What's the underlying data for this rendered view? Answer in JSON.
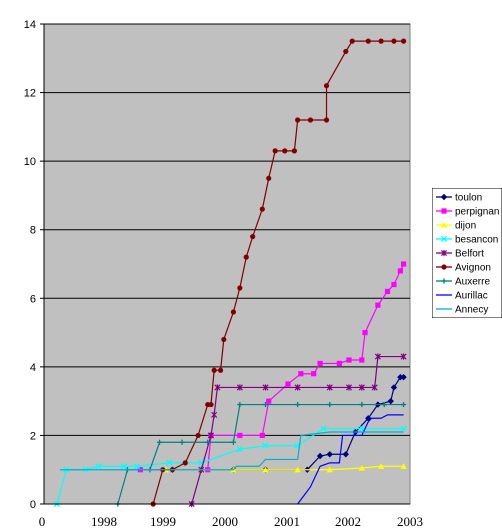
{
  "chart_data": {
    "type": "line",
    "ylim": [
      0,
      14
    ],
    "y_ticks": [
      "0",
      "2",
      "4",
      "6",
      "8",
      "10",
      "12",
      "14"
    ],
    "x_ticks": [
      "0",
      "1998",
      "1999",
      "2000",
      "2001",
      "2002",
      "2003"
    ],
    "xlim": [
      1997.55,
      2003.25
    ],
    "grid": true,
    "legend_position": "right",
    "plot_background": "#c0c0c0",
    "series": [
      {
        "name": "toulon",
        "color": "#000080",
        "marker": "diamond",
        "points": [
          [
            1999.55,
            1.0
          ],
          [
            2000.5,
            1.0
          ],
          [
            2001.0,
            1.0
          ],
          [
            2001.65,
            1.0
          ],
          [
            2001.85,
            1.4
          ],
          [
            2002.0,
            1.45
          ],
          [
            2002.25,
            1.45
          ],
          [
            2002.4,
            2.1
          ],
          [
            2002.6,
            2.5
          ],
          [
            2002.75,
            2.9
          ],
          [
            2002.95,
            3.0
          ],
          [
            2003.0,
            3.4
          ],
          [
            2003.1,
            3.7
          ],
          [
            2003.15,
            3.7
          ]
        ]
      },
      {
        "name": "perpignan",
        "color": "#ff00ff",
        "marker": "square",
        "points": [
          [
            1999.05,
            1.0
          ],
          [
            2000.1,
            1.0
          ],
          [
            2000.15,
            2.0
          ],
          [
            2000.6,
            2.0
          ],
          [
            2000.95,
            2.0
          ],
          [
            2001.05,
            3.0
          ],
          [
            2001.35,
            3.5
          ],
          [
            2001.55,
            3.8
          ],
          [
            2001.75,
            3.8
          ],
          [
            2001.85,
            4.1
          ],
          [
            2002.15,
            4.1
          ],
          [
            2002.3,
            4.2
          ],
          [
            2002.5,
            4.2
          ],
          [
            2002.55,
            5.0
          ],
          [
            2002.75,
            5.8
          ],
          [
            2002.9,
            6.2
          ],
          [
            2003.0,
            6.4
          ],
          [
            2003.1,
            6.8
          ],
          [
            2003.15,
            7.0
          ]
        ]
      },
      {
        "name": "dijon",
        "color": "#ffff00",
        "marker": "triangle",
        "points": [
          [
            1999.45,
            1.0
          ],
          [
            2000.0,
            1.0
          ],
          [
            2000.5,
            1.0
          ],
          [
            2001.0,
            1.0
          ],
          [
            2001.5,
            1.0
          ],
          [
            2002.0,
            1.0
          ],
          [
            2002.5,
            1.05
          ],
          [
            2002.8,
            1.1
          ],
          [
            2003.15,
            1.1
          ]
        ]
      },
      {
        "name": "besancon",
        "color": "#00ffff",
        "marker": "x",
        "points": [
          [
            1997.75,
            0.0
          ],
          [
            1997.9,
            1.0
          ],
          [
            1998.2,
            1.0
          ],
          [
            1998.4,
            1.1
          ],
          [
            1998.8,
            1.1
          ],
          [
            1999.0,
            1.1
          ],
          [
            1999.5,
            1.2
          ],
          [
            2000.0,
            1.2
          ],
          [
            2000.6,
            1.6
          ],
          [
            2001.0,
            1.7
          ],
          [
            2001.5,
            1.7
          ],
          [
            2001.9,
            2.2
          ],
          [
            2002.5,
            2.2
          ],
          [
            2003.15,
            2.2
          ]
        ]
      },
      {
        "name": "Belfort",
        "color": "#800080",
        "marker": "asterisk",
        "points": [
          [
            1999.85,
            0.0
          ],
          [
            2000.0,
            1.0
          ],
          [
            2000.15,
            2.0
          ],
          [
            2000.2,
            2.6
          ],
          [
            2000.25,
            3.4
          ],
          [
            2000.6,
            3.4
          ],
          [
            2001.0,
            3.4
          ],
          [
            2001.5,
            3.4
          ],
          [
            2002.0,
            3.4
          ],
          [
            2002.3,
            3.4
          ],
          [
            2002.5,
            3.4
          ],
          [
            2002.7,
            3.4
          ],
          [
            2002.75,
            4.3
          ],
          [
            2003.15,
            4.3
          ]
        ]
      },
      {
        "name": "Avignon",
        "color": "#800000",
        "marker": "circle",
        "points": [
          [
            1999.25,
            0.0
          ],
          [
            1999.4,
            1.0
          ],
          [
            1999.55,
            1.0
          ],
          [
            1999.75,
            1.2
          ],
          [
            1999.95,
            2.0
          ],
          [
            2000.1,
            2.9
          ],
          [
            2000.15,
            2.9
          ],
          [
            2000.2,
            3.9
          ],
          [
            2000.3,
            3.9
          ],
          [
            2000.35,
            4.8
          ],
          [
            2000.5,
            5.6
          ],
          [
            2000.6,
            6.3
          ],
          [
            2000.7,
            7.2
          ],
          [
            2000.8,
            7.8
          ],
          [
            2000.95,
            8.6
          ],
          [
            2001.05,
            9.5
          ],
          [
            2001.15,
            10.3
          ],
          [
            2001.3,
            10.3
          ],
          [
            2001.45,
            10.3
          ],
          [
            2001.5,
            11.2
          ],
          [
            2001.7,
            11.2
          ],
          [
            2001.95,
            11.2
          ],
          [
            2001.95,
            12.2
          ],
          [
            2002.25,
            13.2
          ],
          [
            2002.35,
            13.5
          ],
          [
            2002.6,
            13.5
          ],
          [
            2002.8,
            13.5
          ],
          [
            2003.0,
            13.5
          ],
          [
            2003.15,
            13.5
          ]
        ]
      },
      {
        "name": "Auxerre",
        "color": "#008080",
        "marker": "plus",
        "points": [
          [
            1998.7,
            0.0
          ],
          [
            1998.85,
            1.0
          ],
          [
            1999.2,
            1.0
          ],
          [
            1999.35,
            1.8
          ],
          [
            1999.7,
            1.8
          ],
          [
            2000.1,
            1.8
          ],
          [
            2000.5,
            1.8
          ],
          [
            2000.6,
            2.9
          ],
          [
            2001.0,
            2.9
          ],
          [
            2001.5,
            2.9
          ],
          [
            2002.0,
            2.9
          ],
          [
            2002.5,
            2.9
          ],
          [
            2002.85,
            2.9
          ],
          [
            2003.15,
            2.9
          ]
        ]
      },
      {
        "name": "Aurillac",
        "color": "#0000ff",
        "marker": "line",
        "points": [
          [
            2001.5,
            0.0
          ],
          [
            2001.7,
            0.5
          ],
          [
            2001.85,
            1.1
          ],
          [
            2002.0,
            1.2
          ],
          [
            2002.15,
            1.2
          ],
          [
            2002.2,
            2.0
          ],
          [
            2002.5,
            2.0
          ],
          [
            2002.6,
            2.4
          ],
          [
            2002.65,
            2.5
          ],
          [
            2002.8,
            2.5
          ],
          [
            2002.9,
            2.6
          ],
          [
            2003.15,
            2.6
          ]
        ]
      },
      {
        "name": "Annecy",
        "color": "#00b0d0",
        "marker": "line",
        "points": [
          [
            1997.8,
            1.0
          ],
          [
            1998.5,
            1.0
          ],
          [
            1999.0,
            1.0
          ],
          [
            1999.5,
            1.0
          ],
          [
            2000.0,
            1.0
          ],
          [
            2000.5,
            1.0
          ],
          [
            2000.55,
            1.1
          ],
          [
            2000.9,
            1.1
          ],
          [
            2001.0,
            1.3
          ],
          [
            2001.5,
            1.3
          ],
          [
            2001.55,
            2.0
          ],
          [
            2002.0,
            2.1
          ],
          [
            2002.5,
            2.1
          ],
          [
            2003.15,
            2.1
          ]
        ]
      }
    ]
  }
}
